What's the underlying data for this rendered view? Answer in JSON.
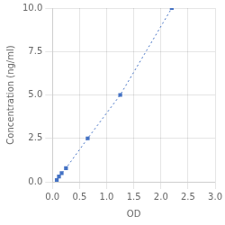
{
  "chart_data": {
    "type": "scatter",
    "x": [
      0.08,
      0.12,
      0.17,
      0.25,
      0.65,
      1.25,
      2.2
    ],
    "values": [
      0.1,
      0.3,
      0.5,
      0.78,
      2.5,
      5.0,
      10.0
    ],
    "color": "#4472c4",
    "marker": "square",
    "line_style": "dotted",
    "xlabel": "OD",
    "ylabel": "Concentration (ng/ml)",
    "xlim": [
      0.0,
      3.0
    ],
    "ylim": [
      0.0,
      10.0
    ],
    "xticks": [
      {
        "value": 0,
        "label": "0.0"
      },
      0.5,
      {
        "value": 1,
        "label": "1.0"
      },
      1.5,
      {
        "value": 2,
        "label": "2.0"
      },
      2.5,
      {
        "value": 3,
        "label": "3.0"
      }
    ],
    "yticks": [
      {
        "value": 0,
        "label": "0.0"
      },
      2.5,
      {
        "value": 5,
        "label": "5.0"
      },
      7.5,
      {
        "value": 10,
        "label": "10.0"
      }
    ],
    "grid": true
  }
}
